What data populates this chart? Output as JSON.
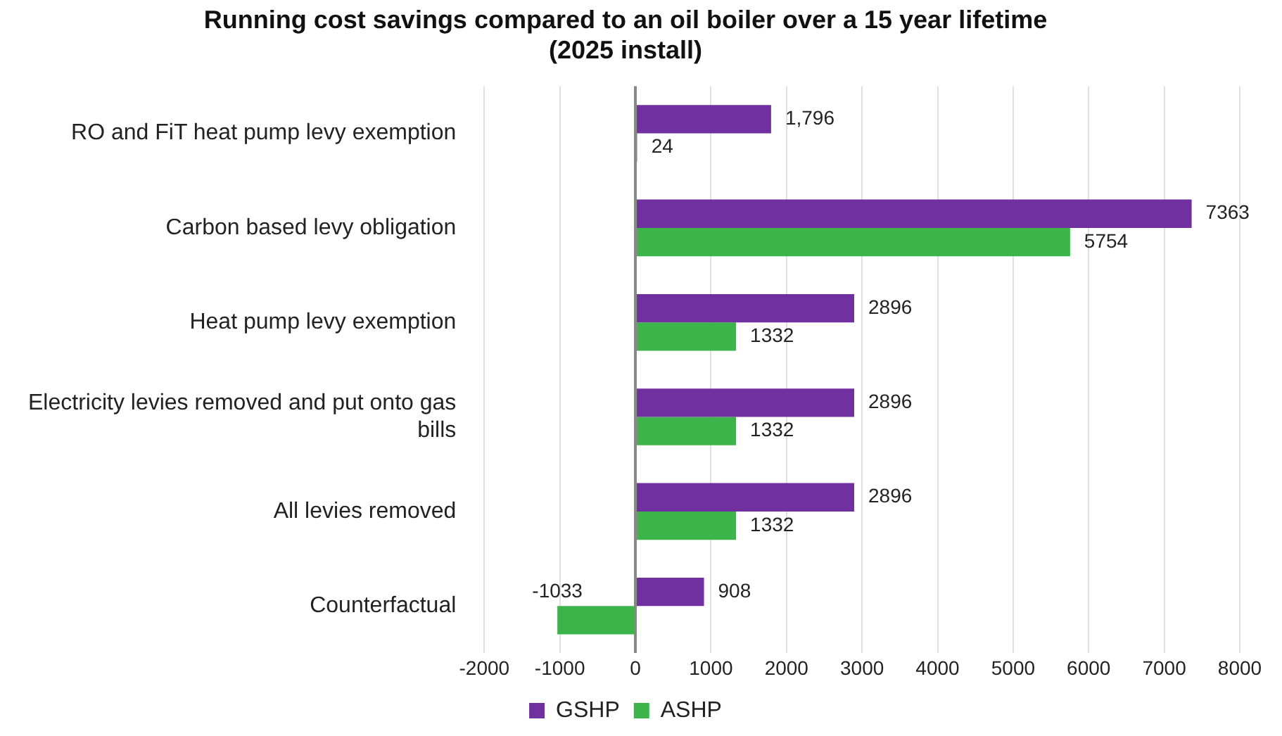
{
  "chart_data": {
    "type": "bar",
    "orientation": "horizontal",
    "title": "Running cost savings compared to an oil boiler over a 15 year lifetime (2025 install)",
    "categories": [
      "RO and FiT heat pump levy exemption",
      "Carbon based levy obligation",
      "Heat pump levy exemption",
      "Electricity levies removed and put onto gas bills",
      "All levies removed",
      "Counterfactual"
    ],
    "series": [
      {
        "name": "GSHP",
        "color": "#7030a0",
        "values": [
          1796,
          7363,
          2896,
          2896,
          2896,
          908
        ],
        "value_labels": [
          "1,796",
          "7363",
          "2896",
          "2896",
          "2896",
          "908"
        ]
      },
      {
        "name": "ASHP",
        "color": "#3cb44a",
        "values": [
          24,
          5754,
          1332,
          1332,
          1332,
          -1033
        ],
        "value_labels": [
          "24",
          "5754",
          "1332",
          "1332",
          "1332",
          "-1033"
        ]
      }
    ],
    "xlim": [
      -2000,
      8000
    ],
    "xticks": [
      -2000,
      -1000,
      0,
      1000,
      2000,
      3000,
      4000,
      5000,
      6000,
      7000,
      8000
    ],
    "grid": "x",
    "legend": "bottom"
  }
}
